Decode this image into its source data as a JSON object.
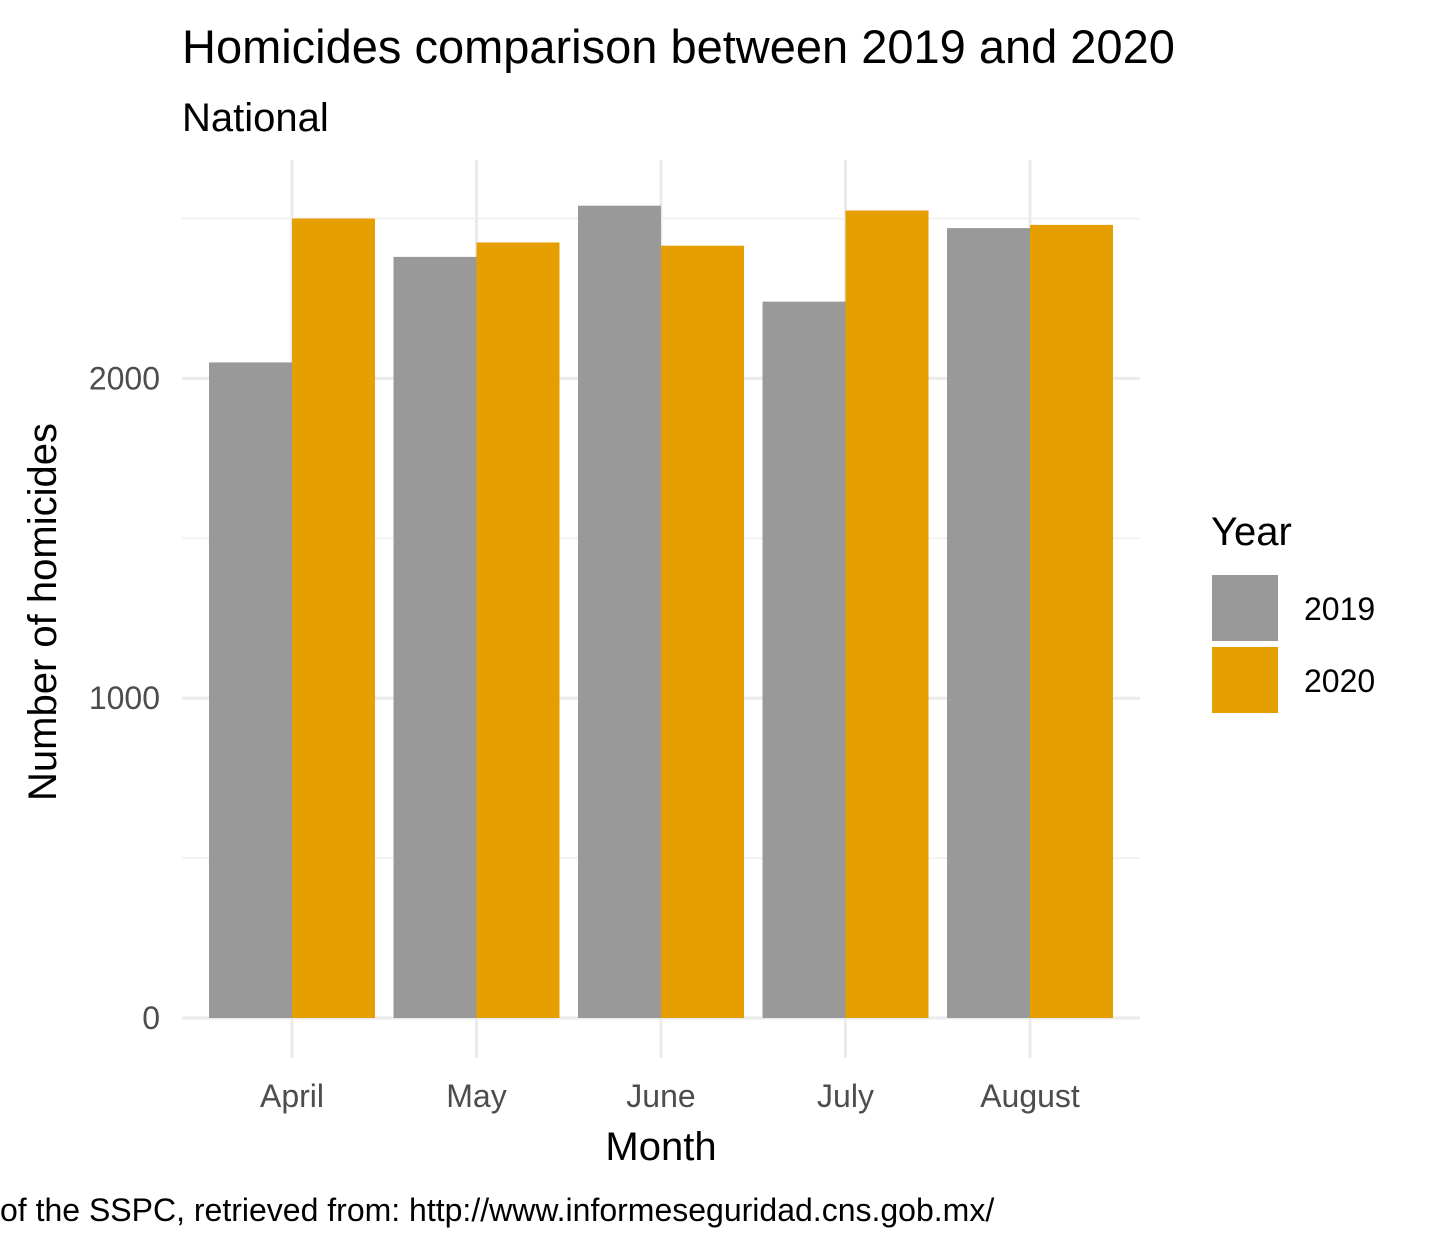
{
  "chart_data": {
    "type": "bar",
    "title": "Homicides comparison between 2019 and 2020",
    "subtitle": "National",
    "xlabel": "Month",
    "ylabel": "Number of homicides",
    "categories": [
      "April",
      "May",
      "June",
      "July",
      "August"
    ],
    "series": [
      {
        "name": "2019",
        "values": [
          2050,
          2380,
          2540,
          2240,
          2470
        ],
        "color": "#999999"
      },
      {
        "name": "2020",
        "values": [
          2500,
          2425,
          2415,
          2525,
          2480
        ],
        "color": "#E69F00"
      }
    ],
    "ylim": [
      0,
      2700
    ],
    "y_ticks": [
      0,
      1000,
      2000
    ],
    "y_tick_labels": [
      "0",
      "1000",
      "2000"
    ],
    "y_minor_ticks": [
      500,
      1500,
      2500
    ],
    "grid": true,
    "legend": {
      "title": "Year",
      "placement": "right",
      "entries": [
        "2019",
        "2020"
      ]
    },
    "caption": "of the SSPC, retrieved from: http://www.informeseguridad.cns.gob.mx/"
  }
}
